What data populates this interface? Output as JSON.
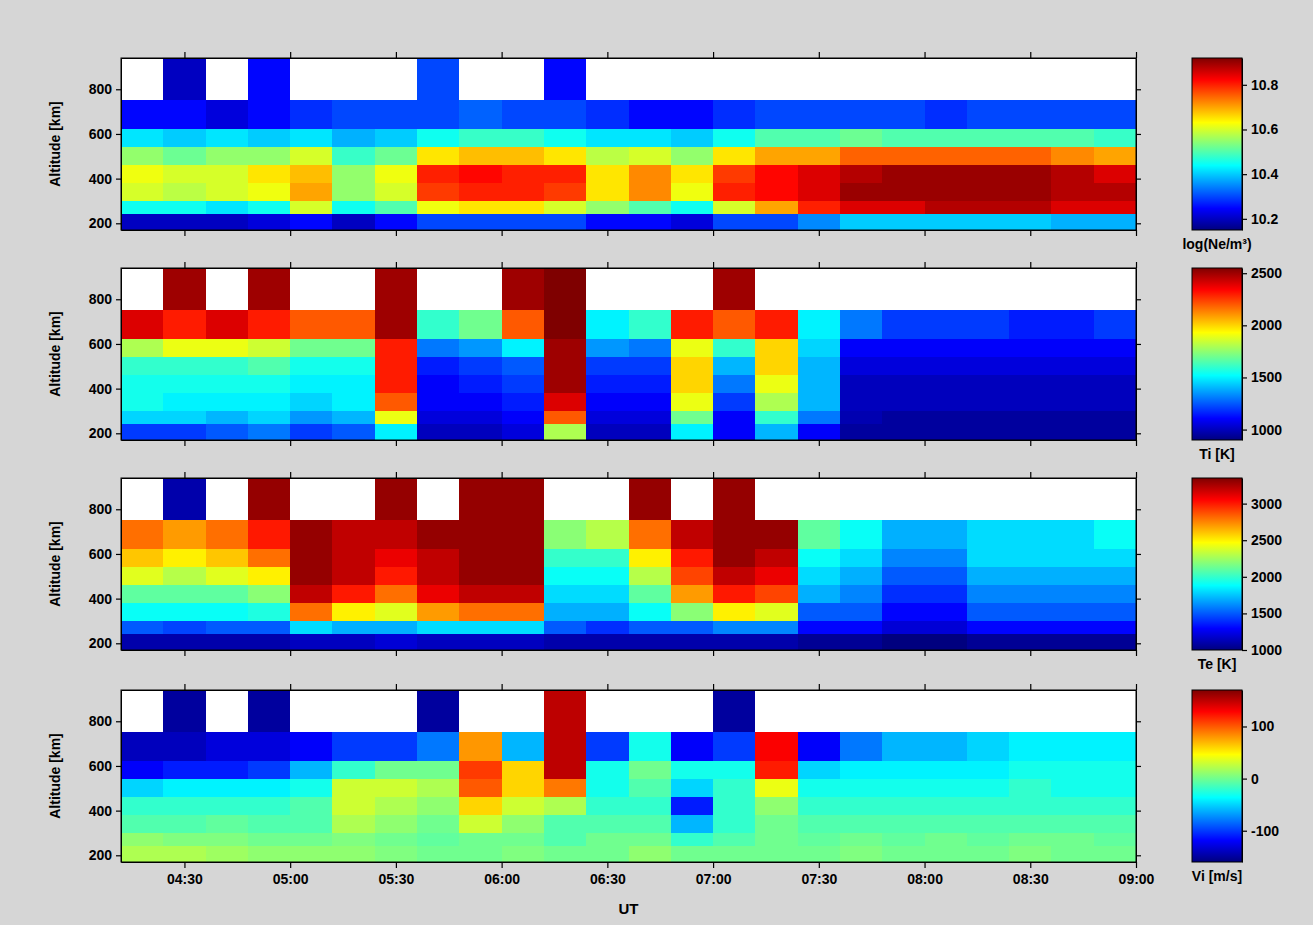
{
  "chart_data": [
    {
      "type": "heatmap",
      "y_label": "Altitude [km]",
      "tick_labels": "y",
      "xlim": [
        4.2,
        9.0
      ],
      "xticks": [
        4.5,
        5.0,
        5.5,
        6.0,
        6.5,
        7.0,
        7.5,
        8.0,
        8.5,
        9.0
      ],
      "ylim": [
        170,
        940
      ],
      "yticks": [
        200,
        400,
        600,
        800
      ],
      "x_bins": [
        4.2,
        4.4,
        4.6,
        4.8,
        5.0,
        5.2,
        5.4,
        5.6,
        5.8,
        6.0,
        6.2,
        6.4,
        6.6,
        6.8,
        7.0,
        7.2,
        7.4,
        7.6,
        7.8,
        8.0,
        8.2,
        8.4,
        8.6,
        8.8,
        9.0
      ],
      "y_bins": [
        170,
        240,
        300,
        380,
        460,
        540,
        620,
        750,
        940
      ],
      "colorbar": {
        "label": "log(Ne/m³)",
        "range": [
          10.15,
          10.92
        ],
        "ticks": [
          10.2,
          10.4,
          10.6,
          10.8
        ]
      },
      "z": [
        [
          10.2,
          10.2,
          10.2,
          10.22,
          10.25,
          10.2,
          10.25,
          10.3,
          10.3,
          10.3,
          10.3,
          10.25,
          10.25,
          10.22,
          10.3,
          10.3,
          10.35,
          10.4,
          10.4,
          10.4,
          10.4,
          10.4,
          10.38,
          10.38
        ],
        [
          10.45,
          10.45,
          10.42,
          10.45,
          10.6,
          10.45,
          10.5,
          10.62,
          10.65,
          10.65,
          10.6,
          10.55,
          10.5,
          10.45,
          10.6,
          10.7,
          10.8,
          10.85,
          10.85,
          10.88,
          10.88,
          10.88,
          10.85,
          10.85
        ],
        [
          10.6,
          10.58,
          10.6,
          10.62,
          10.7,
          10.55,
          10.6,
          10.78,
          10.8,
          10.8,
          10.78,
          10.65,
          10.72,
          10.62,
          10.8,
          10.82,
          10.85,
          10.9,
          10.9,
          10.9,
          10.9,
          10.9,
          10.88,
          10.88
        ],
        [
          10.62,
          10.6,
          10.6,
          10.65,
          10.68,
          10.55,
          10.62,
          10.8,
          10.82,
          10.8,
          10.8,
          10.65,
          10.72,
          10.65,
          10.78,
          10.82,
          10.85,
          10.88,
          10.9,
          10.9,
          10.9,
          10.9,
          10.88,
          10.85
        ],
        [
          10.55,
          10.52,
          10.55,
          10.55,
          10.6,
          10.48,
          10.52,
          10.65,
          10.68,
          10.68,
          10.65,
          10.58,
          10.6,
          10.55,
          10.65,
          10.7,
          10.7,
          10.75,
          10.75,
          10.75,
          10.75,
          10.75,
          10.72,
          10.7
        ],
        [
          10.42,
          10.4,
          10.42,
          10.4,
          10.42,
          10.38,
          10.4,
          10.45,
          10.48,
          10.48,
          10.45,
          10.42,
          10.42,
          10.4,
          10.45,
          10.5,
          10.5,
          10.52,
          10.5,
          10.5,
          10.5,
          10.5,
          10.5,
          10.48
        ],
        [
          10.25,
          10.25,
          10.22,
          10.25,
          10.28,
          10.3,
          10.3,
          10.3,
          10.32,
          10.3,
          10.3,
          10.28,
          10.25,
          10.25,
          10.28,
          10.3,
          10.3,
          10.3,
          10.3,
          10.28,
          10.3,
          10.3,
          10.3,
          10.3
        ],
        [
          null,
          10.2,
          null,
          10.25,
          null,
          null,
          null,
          10.3,
          null,
          null,
          10.25,
          null,
          null,
          null,
          null,
          null,
          null,
          null,
          null,
          null,
          null,
          null,
          null,
          null
        ]
      ]
    },
    {
      "type": "heatmap",
      "y_label": "Altitude [km]",
      "tick_labels": "y",
      "xlim": [
        4.2,
        9.0
      ],
      "xticks": [
        4.5,
        5.0,
        5.5,
        6.0,
        6.5,
        7.0,
        7.5,
        8.0,
        8.5,
        9.0
      ],
      "ylim": [
        170,
        940
      ],
      "yticks": [
        200,
        400,
        600,
        800
      ],
      "x_bins": [
        4.2,
        4.4,
        4.6,
        4.8,
        5.0,
        5.2,
        5.4,
        5.6,
        5.8,
        6.0,
        6.2,
        6.4,
        6.6,
        6.8,
        7.0,
        7.2,
        7.4,
        7.6,
        7.8,
        8.0,
        8.2,
        8.4,
        8.6,
        8.8,
        9.0
      ],
      "y_bins": [
        170,
        240,
        300,
        380,
        460,
        540,
        620,
        750,
        940
      ],
      "colorbar": {
        "label": "Ti [K]",
        "range": [
          900,
          2550
        ],
        "ticks": [
          1000,
          1500,
          2000,
          2500
        ]
      },
      "z": [
        [
          1200,
          1200,
          1250,
          1300,
          1200,
          1250,
          1500,
          1000,
          1000,
          1050,
          1800,
          1000,
          1000,
          1500,
          1100,
          1400,
          1100,
          950,
          950,
          950,
          950,
          950,
          950,
          950
        ],
        [
          1450,
          1450,
          1400,
          1450,
          1350,
          1400,
          1900,
          1050,
          1050,
          1100,
          2200,
          1050,
          1050,
          1700,
          1100,
          1600,
          1300,
          980,
          950,
          950,
          950,
          950,
          950,
          950
        ],
        [
          1550,
          1500,
          1500,
          1500,
          1450,
          1500,
          2200,
          1100,
          1100,
          1150,
          2400,
          1100,
          1100,
          1900,
          1200,
          1800,
          1400,
          1000,
          1000,
          1000,
          1000,
          1000,
          1000,
          1000
        ],
        [
          1550,
          1550,
          1550,
          1550,
          1500,
          1500,
          2300,
          1100,
          1150,
          1200,
          2500,
          1150,
          1150,
          2000,
          1300,
          1900,
          1400,
          1000,
          1000,
          1000,
          1000,
          1000,
          1000,
          1000
        ],
        [
          1600,
          1600,
          1600,
          1650,
          1550,
          1550,
          2300,
          1150,
          1200,
          1250,
          2500,
          1200,
          1200,
          2000,
          1400,
          2000,
          1400,
          1050,
          1050,
          1050,
          1050,
          1050,
          1050,
          1050
        ],
        [
          1800,
          1900,
          1900,
          1850,
          1700,
          1700,
          2300,
          1300,
          1350,
          1500,
          2500,
          1350,
          1300,
          1900,
          1600,
          2000,
          1450,
          1100,
          1100,
          1100,
          1100,
          1100,
          1100,
          1100
        ],
        [
          2400,
          2300,
          2400,
          2300,
          2200,
          2200,
          2500,
          1600,
          1700,
          2200,
          2550,
          1500,
          1600,
          2300,
          2200,
          2300,
          1500,
          1300,
          1200,
          1200,
          1200,
          1150,
          1150,
          1200
        ],
        [
          null,
          2500,
          null,
          2500,
          null,
          null,
          2500,
          null,
          null,
          2500,
          2550,
          null,
          null,
          null,
          2500,
          null,
          null,
          null,
          null,
          null,
          null,
          null,
          null,
          null
        ]
      ]
    },
    {
      "type": "heatmap",
      "y_label": "Altitude [km]",
      "tick_labels": "y",
      "xlim": [
        4.2,
        9.0
      ],
      "xticks": [
        4.5,
        5.0,
        5.5,
        6.0,
        6.5,
        7.0,
        7.5,
        8.0,
        8.5,
        9.0
      ],
      "ylim": [
        170,
        940
      ],
      "yticks": [
        200,
        400,
        600,
        800
      ],
      "x_bins": [
        4.2,
        4.4,
        4.6,
        4.8,
        5.0,
        5.2,
        5.4,
        5.6,
        5.8,
        6.0,
        6.2,
        6.4,
        6.6,
        6.8,
        7.0,
        7.2,
        7.4,
        7.6,
        7.8,
        8.0,
        8.2,
        8.4,
        8.6,
        8.8,
        9.0
      ],
      "y_bins": [
        170,
        240,
        300,
        380,
        460,
        540,
        620,
        750,
        940
      ],
      "colorbar": {
        "label": "Te [K]",
        "range": [
          1000,
          3350
        ],
        "ticks": [
          1000,
          1500,
          2000,
          2500,
          3000
        ]
      },
      "z": [
        [
          1100,
          1100,
          1100,
          1100,
          1150,
          1150,
          1200,
          1150,
          1150,
          1150,
          1100,
          1100,
          1100,
          1100,
          1100,
          1100,
          1050,
          1050,
          1000,
          1000,
          1050,
          1050,
          1050,
          1050
        ],
        [
          1500,
          1450,
          1500,
          1500,
          1800,
          1700,
          1700,
          1800,
          1800,
          1800,
          1500,
          1400,
          1500,
          1500,
          1600,
          1600,
          1300,
          1300,
          1200,
          1200,
          1300,
          1300,
          1300,
          1300
        ],
        [
          1900,
          1900,
          1900,
          1950,
          2800,
          2500,
          2400,
          2700,
          2800,
          2800,
          1700,
          1700,
          1900,
          2200,
          2500,
          2400,
          1500,
          1500,
          1300,
          1300,
          1500,
          1500,
          1500,
          1500
        ],
        [
          2100,
          2100,
          2100,
          2200,
          3200,
          3000,
          2800,
          3100,
          3200,
          3200,
          1800,
          1800,
          2100,
          2700,
          3000,
          2900,
          1700,
          1600,
          1400,
          1400,
          1600,
          1600,
          1600,
          1600
        ],
        [
          2400,
          2300,
          2400,
          2500,
          3300,
          3200,
          3000,
          3200,
          3300,
          3300,
          1900,
          1900,
          2300,
          2900,
          3200,
          3100,
          1800,
          1700,
          1500,
          1500,
          1700,
          1700,
          1700,
          1700
        ],
        [
          2600,
          2500,
          2600,
          2800,
          3300,
          3200,
          3100,
          3200,
          3300,
          3300,
          2000,
          2000,
          2500,
          3000,
          3300,
          3200,
          1900,
          1800,
          1600,
          1600,
          1800,
          1800,
          1800,
          1800
        ],
        [
          2800,
          2700,
          2800,
          3000,
          3300,
          3200,
          3200,
          3300,
          3300,
          3300,
          2200,
          2300,
          2800,
          3200,
          3300,
          3300,
          2100,
          1900,
          1700,
          1700,
          1800,
          1800,
          1800,
          1900
        ],
        [
          null,
          1100,
          null,
          3300,
          null,
          null,
          3300,
          null,
          3300,
          3300,
          null,
          null,
          3300,
          null,
          3300,
          null,
          null,
          null,
          null,
          null,
          null,
          null,
          null,
          null
        ]
      ]
    },
    {
      "type": "heatmap",
      "y_label": "Altitude [km]",
      "x_label": "UT",
      "xlim": [
        4.2,
        9.0
      ],
      "xticks": [
        {
          "value": 4.5,
          "label": "04:30"
        },
        {
          "value": 5.0,
          "label": "05:00"
        },
        {
          "value": 5.5,
          "label": "05:30"
        },
        {
          "value": 6.0,
          "label": "06:00"
        },
        {
          "value": 6.5,
          "label": "06:30"
        },
        {
          "value": 7.0,
          "label": "07:00"
        },
        {
          "value": 7.5,
          "label": "07:30"
        },
        {
          "value": 8.0,
          "label": "08:00"
        },
        {
          "value": 8.5,
          "label": "08:30"
        },
        {
          "value": 9.0,
          "label": "09:00"
        }
      ],
      "ylim": [
        170,
        940
      ],
      "yticks": [
        200,
        400,
        600,
        800
      ],
      "x_bins": [
        4.2,
        4.4,
        4.6,
        4.8,
        5.0,
        5.2,
        5.4,
        5.6,
        5.8,
        6.0,
        6.2,
        6.4,
        6.6,
        6.8,
        7.0,
        7.2,
        7.4,
        7.6,
        7.8,
        8.0,
        8.2,
        8.4,
        8.6,
        8.8,
        9.0
      ],
      "y_bins": [
        170,
        240,
        300,
        380,
        460,
        540,
        620,
        750,
        940
      ],
      "colorbar": {
        "label": "Vi [m/s]",
        "range": [
          -160,
          170
        ],
        "ticks": [
          -100,
          0,
          100
        ]
      },
      "z": [
        [
          20,
          20,
          15,
          10,
          10,
          10,
          5,
          0,
          0,
          5,
          0,
          0,
          10,
          0,
          0,
          0,
          0,
          5,
          0,
          0,
          0,
          5,
          0,
          0
        ],
        [
          10,
          5,
          5,
          0,
          0,
          5,
          0,
          -5,
          0,
          0,
          -10,
          0,
          0,
          -20,
          -10,
          0,
          -5,
          0,
          -5,
          0,
          -5,
          0,
          0,
          -5
        ],
        [
          -10,
          -10,
          -5,
          -10,
          -10,
          20,
          10,
          0,
          30,
          10,
          -10,
          -10,
          -10,
          -60,
          -20,
          0,
          -10,
          -10,
          -10,
          -10,
          -10,
          -10,
          -10,
          -10
        ],
        [
          -20,
          -20,
          -20,
          -20,
          -10,
          30,
          20,
          10,
          60,
          30,
          20,
          -20,
          -20,
          -110,
          -20,
          10,
          -20,
          -20,
          -20,
          -20,
          -20,
          -20,
          -20,
          -20
        ],
        [
          -50,
          -40,
          -40,
          -40,
          -30,
          30,
          30,
          20,
          100,
          60,
          90,
          -30,
          -10,
          -50,
          -20,
          40,
          -30,
          -30,
          -30,
          -30,
          -30,
          -20,
          -30,
          -30
        ],
        [
          -120,
          -110,
          -110,
          -100,
          -60,
          -20,
          0,
          0,
          110,
          60,
          150,
          -30,
          0,
          -30,
          -30,
          120,
          -50,
          -40,
          -40,
          -40,
          -40,
          -30,
          -30,
          -30
        ],
        [
          -140,
          -140,
          -130,
          -130,
          -120,
          -100,
          -100,
          -80,
          80,
          -60,
          150,
          -100,
          -30,
          -120,
          -100,
          130,
          -120,
          -80,
          -60,
          -60,
          -50,
          -40,
          -40,
          -40
        ],
        [
          null,
          -150,
          null,
          -150,
          null,
          null,
          null,
          -150,
          null,
          null,
          150,
          null,
          null,
          null,
          -150,
          null,
          null,
          null,
          null,
          null,
          null,
          null,
          null,
          null
        ]
      ]
    }
  ]
}
